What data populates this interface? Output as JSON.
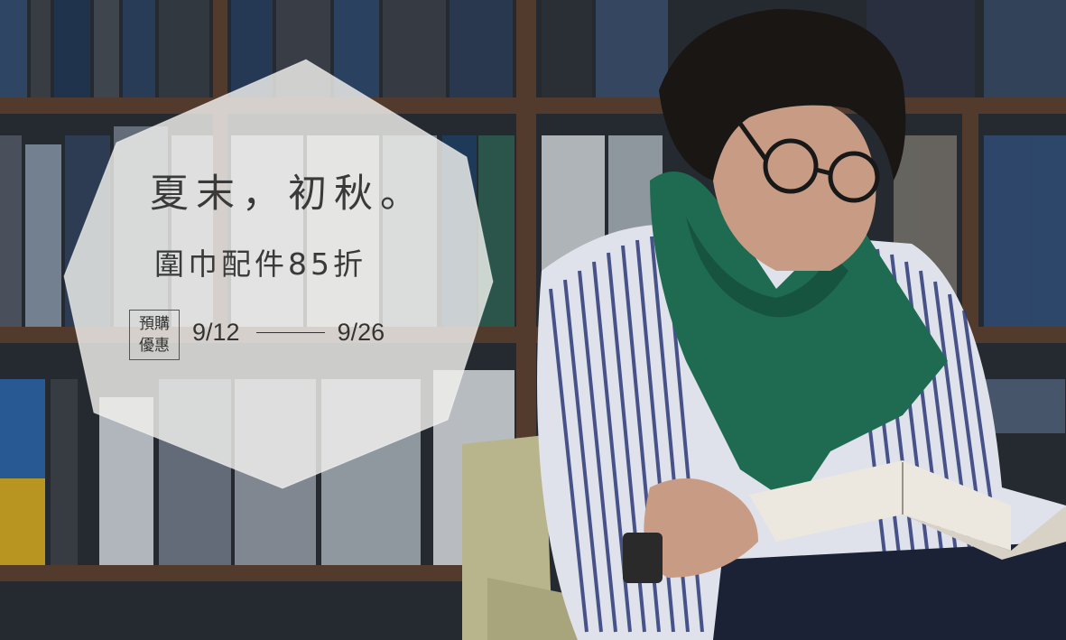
{
  "promo": {
    "headline": "夏末，初秋。",
    "subheadline": "圍巾配件85折",
    "badge_line1": "預購",
    "badge_line2": "優惠",
    "date_start": "9/12",
    "date_end": "9/26"
  },
  "colors": {
    "text": "#3a3a3a",
    "badge_fill": "#f2f1ee",
    "scarf": "#1e6b52",
    "shelf_wood": "#5a3d2c"
  },
  "icons": {
    "badge_shape": "hexagon-badge"
  }
}
